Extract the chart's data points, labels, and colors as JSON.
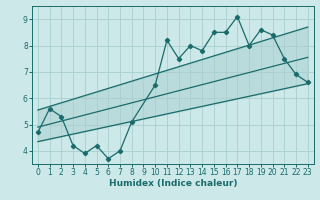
{
  "xlabel": "Humidex (Indice chaleur)",
  "background_color": "#cce8e8",
  "grid_color": "#aacfcf",
  "line_color": "#1a6b6b",
  "xlim": [
    -0.5,
    23.5
  ],
  "ylim": [
    3.5,
    9.5
  ],
  "x_ticks": [
    0,
    1,
    2,
    3,
    4,
    5,
    6,
    7,
    8,
    9,
    10,
    11,
    12,
    13,
    14,
    15,
    16,
    17,
    18,
    19,
    20,
    21,
    22,
    23
  ],
  "y_ticks": [
    4,
    5,
    6,
    7,
    8,
    9
  ],
  "data_x": [
    0,
    1,
    2,
    3,
    4,
    5,
    6,
    7,
    8,
    10,
    11,
    12,
    13,
    14,
    15,
    16,
    17,
    18,
    19,
    20,
    21,
    22,
    23
  ],
  "data_y": [
    4.7,
    5.6,
    5.3,
    4.2,
    3.9,
    4.2,
    3.7,
    4.0,
    5.1,
    6.5,
    8.2,
    7.5,
    8.0,
    7.8,
    8.5,
    8.5,
    9.1,
    8.0,
    8.6,
    8.4,
    7.5,
    6.9,
    6.6
  ],
  "upper_line_x": [
    0,
    23
  ],
  "upper_line_y": [
    5.55,
    8.7
  ],
  "lower_line_x": [
    0,
    23
  ],
  "lower_line_y": [
    4.35,
    6.55
  ],
  "mid_line_x": [
    0,
    23
  ],
  "mid_line_y": [
    4.9,
    7.55
  ],
  "tick_fontsize": 5.5,
  "xlabel_fontsize": 6.5
}
